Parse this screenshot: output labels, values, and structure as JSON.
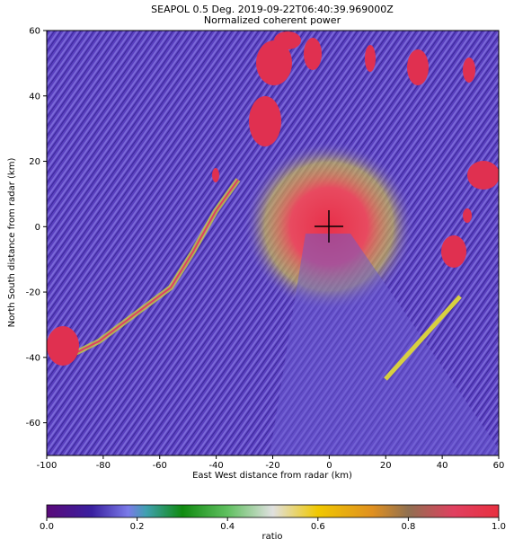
{
  "chart_data": {
    "type": "radar_ppi",
    "title": "SEAPOL 0.5 Deg. 2019-09-22T06:40:39.969000Z",
    "subtitle": "Normalized coherent power",
    "x_label": "East West distance from radar (km)",
    "y_label": "North South distance from radar (km)",
    "xlim": [
      -100,
      60
    ],
    "ylim": [
      -70,
      60
    ],
    "xticks": [
      -100,
      -80,
      -60,
      -40,
      -20,
      0,
      20,
      40,
      60
    ],
    "yticks": [
      -60,
      -40,
      -20,
      0,
      20,
      40,
      60
    ],
    "colorbar": {
      "label": "ratio",
      "clim": [
        0,
        1
      ],
      "ticks": [
        {
          "value": 0,
          "label": "0.0"
        },
        0.2,
        0.4,
        0.6,
        0.8,
        {
          "value": 1,
          "label": "1.0"
        }
      ]
    }
  }
}
